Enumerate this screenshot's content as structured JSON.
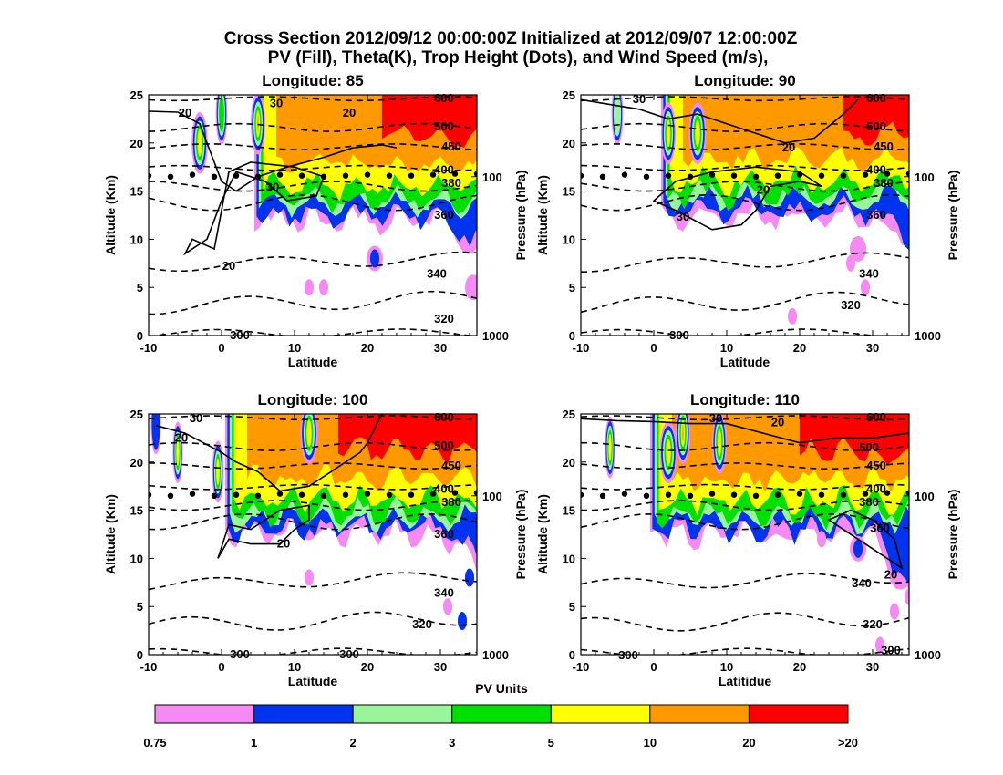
{
  "figure": {
    "title_line1": "Cross Section 2012/09/12 00:00:00Z Initialized at 2012/09/07 12:00:00Z",
    "title_line2": "PV (Fill), Theta(K), Trop Height (Dots), and Wind Speed (m/s),"
  },
  "colorbar": {
    "label": "PV Units",
    "bins": [
      {
        "lo": "0.75",
        "hi": "1",
        "color": "#f58af5"
      },
      {
        "lo": "1",
        "hi": "2",
        "color": "#0033ee"
      },
      {
        "lo": "2",
        "hi": "3",
        "color": "#99f599"
      },
      {
        "lo": "3",
        "hi": "5",
        "color": "#00e000"
      },
      {
        "lo": "5",
        "hi": "10",
        "color": "#ffff00"
      },
      {
        "lo": "10",
        "hi": "20",
        "color": "#ff9900"
      },
      {
        "lo": "20",
        "hi": ">20",
        "color": "#ff0000"
      }
    ],
    "tick_labels": [
      "0.75",
      "1",
      "2",
      "3",
      "5",
      "10",
      "20",
      ">20"
    ]
  },
  "chart_data": [
    {
      "type": "contour",
      "title": "Longitude:  85",
      "longitude": 85,
      "xlabel": "Latitude",
      "ylabel": "Altitude (Km)",
      "y2label": "Pressure (hPa)",
      "xlim": [
        -10,
        35
      ],
      "ylim": [
        0,
        25
      ],
      "xticks": [
        -10,
        0,
        10,
        20,
        30
      ],
      "yticks": [
        0,
        5,
        10,
        15,
        20,
        25
      ],
      "y2ticks": [
        {
          "label": "100",
          "alt": 16.5
        },
        {
          "label": "1000",
          "alt": 0
        }
      ],
      "trop_height_km": [
        [
          -10,
          16.6
        ],
        [
          -7,
          16.5
        ],
        [
          -4,
          16.7
        ],
        [
          -1,
          16.5
        ],
        [
          2,
          16.6
        ],
        [
          5,
          16.5
        ],
        [
          8,
          16.7
        ],
        [
          11,
          16.6
        ],
        [
          14,
          16.5
        ],
        [
          17,
          16.6
        ],
        [
          20,
          16.7
        ],
        [
          23,
          16.6
        ],
        [
          26,
          16.6
        ],
        [
          29,
          16.7
        ],
        [
          32,
          16.8
        ],
        [
          35,
          16.8
        ]
      ],
      "theta_labels": [
        {
          "label": "600",
          "lat": 30.5,
          "alt": 24.7
        },
        {
          "label": "500",
          "lat": 30.5,
          "alt": 21.8
        },
        {
          "label": "450",
          "lat": 31.5,
          "alt": 19.7
        },
        {
          "label": "400",
          "lat": 30.5,
          "alt": 17.3
        },
        {
          "label": "380",
          "lat": 31.5,
          "alt": 15.9
        },
        {
          "label": "360",
          "lat": 30.5,
          "alt": 12.6
        },
        {
          "label": "340",
          "lat": 29.5,
          "alt": 6.5
        },
        {
          "label": "320",
          "lat": 30.5,
          "alt": 1.8
        },
        {
          "label": "300",
          "lat": 2.5,
          "alt": 0.1
        }
      ],
      "wind_labels": [
        {
          "label": "30",
          "lat": 7.5,
          "alt": 24.2
        },
        {
          "label": "20",
          "lat": -5,
          "alt": 23.2
        },
        {
          "label": "20",
          "lat": 17.5,
          "alt": 23.2
        },
        {
          "label": "30",
          "lat": 7,
          "alt": 15.5
        },
        {
          "label": "20",
          "lat": 1,
          "alt": 7.3
        }
      ]
    },
    {
      "type": "contour",
      "title": "Longitude:  90",
      "longitude": 90,
      "xlabel": "Latitude",
      "ylabel": "Altitude (Km)",
      "y2label": "Pressure (hPa)",
      "xlim": [
        -10,
        35
      ],
      "ylim": [
        0,
        25
      ],
      "xticks": [
        -10,
        0,
        10,
        20,
        30
      ],
      "yticks": [
        0,
        5,
        10,
        15,
        20,
        25
      ],
      "y2ticks": [
        {
          "label": "100",
          "alt": 16.5
        },
        {
          "label": "1000",
          "alt": 0
        }
      ],
      "trop_height_km": [
        [
          -10,
          16.6
        ],
        [
          -7,
          16.5
        ],
        [
          -4,
          16.7
        ],
        [
          -1,
          16.5
        ],
        [
          2,
          16.6
        ],
        [
          5,
          16.5
        ],
        [
          8,
          16.7
        ],
        [
          11,
          16.6
        ],
        [
          14,
          16.5
        ],
        [
          17,
          16.6
        ],
        [
          20,
          16.7
        ],
        [
          23,
          16.6
        ],
        [
          26,
          16.6
        ],
        [
          29,
          16.7
        ],
        [
          32,
          16.8
        ],
        [
          35,
          16.8
        ]
      ],
      "theta_labels": [
        {
          "label": "600",
          "lat": 30.5,
          "alt": 24.7
        },
        {
          "label": "500",
          "lat": 30.5,
          "alt": 21.8
        },
        {
          "label": "450",
          "lat": 31.5,
          "alt": 19.7
        },
        {
          "label": "400",
          "lat": 30.5,
          "alt": 17.3
        },
        {
          "label": "380",
          "lat": 31.5,
          "alt": 15.9
        },
        {
          "label": "360",
          "lat": 30.5,
          "alt": 12.6
        },
        {
          "label": "340",
          "lat": 29.5,
          "alt": 6.5
        },
        {
          "label": "320",
          "lat": 27,
          "alt": 3.2
        },
        {
          "label": "300",
          "lat": 3.5,
          "alt": 0.1
        }
      ],
      "wind_labels": [
        {
          "label": "30",
          "lat": -2,
          "alt": 24.6
        },
        {
          "label": "20",
          "lat": 18.5,
          "alt": 19.6
        },
        {
          "label": "20",
          "lat": 15,
          "alt": 15.2
        },
        {
          "label": "30",
          "lat": 4,
          "alt": 12.4
        }
      ]
    },
    {
      "type": "contour",
      "title": "Longitude:  100",
      "longitude": 100,
      "xlabel": "Latitude",
      "ylabel": "Altitude (Km)",
      "y2label": "Pressure (hPa)",
      "xlim": [
        -10,
        35
      ],
      "ylim": [
        0,
        25
      ],
      "xticks": [
        -10,
        0,
        10,
        20,
        30
      ],
      "yticks": [
        0,
        5,
        10,
        15,
        20,
        25
      ],
      "y2ticks": [
        {
          "label": "100",
          "alt": 16.5
        },
        {
          "label": "1000",
          "alt": 0
        }
      ],
      "trop_height_km": [
        [
          -10,
          16.6
        ],
        [
          -7,
          16.5
        ],
        [
          -4,
          16.7
        ],
        [
          -1,
          16.5
        ],
        [
          2,
          16.6
        ],
        [
          5,
          16.5
        ],
        [
          8,
          16.7
        ],
        [
          11,
          16.6
        ],
        [
          14,
          16.5
        ],
        [
          17,
          16.6
        ],
        [
          20,
          16.7
        ],
        [
          23,
          16.6
        ],
        [
          26,
          16.6
        ],
        [
          29,
          16.7
        ],
        [
          32,
          16.8
        ],
        [
          35,
          16.8
        ]
      ],
      "theta_labels": [
        {
          "label": "600",
          "lat": 30.5,
          "alt": 24.7
        },
        {
          "label": "500",
          "lat": 30.5,
          "alt": 21.8
        },
        {
          "label": "450",
          "lat": 31.5,
          "alt": 19.7
        },
        {
          "label": "400",
          "lat": 30.5,
          "alt": 17.3
        },
        {
          "label": "380",
          "lat": 31.5,
          "alt": 15.9
        },
        {
          "label": "360",
          "lat": 30.5,
          "alt": 12.6
        },
        {
          "label": "340",
          "lat": 30.5,
          "alt": 6.5
        },
        {
          "label": "320",
          "lat": 27.5,
          "alt": 3.2
        },
        {
          "label": "300",
          "lat": 2.5,
          "alt": 0.1
        },
        {
          "label": "300",
          "lat": 17.5,
          "alt": 0.1
        }
      ],
      "wind_labels": [
        {
          "label": "30",
          "lat": -3.5,
          "alt": 24.6
        },
        {
          "label": "20",
          "lat": -5.5,
          "alt": 22.6
        },
        {
          "label": "20",
          "lat": 8.5,
          "alt": 11.6
        }
      ]
    },
    {
      "type": "contour",
      "title": "Longitude:  110",
      "longitude": 110,
      "xlabel": "Latitidue",
      "ylabel": "Altitude (Km)",
      "y2label": "Pressure (hPa)",
      "xlim": [
        -10,
        35
      ],
      "ylim": [
        0,
        25
      ],
      "xticks": [
        -10,
        0,
        10,
        20,
        30
      ],
      "yticks": [
        0,
        5,
        10,
        15,
        20,
        25
      ],
      "y2ticks": [
        {
          "label": "100",
          "alt": 16.5
        },
        {
          "label": "1000",
          "alt": 0
        }
      ],
      "trop_height_km": [
        [
          -10,
          16.6
        ],
        [
          -7,
          16.5
        ],
        [
          -4,
          16.7
        ],
        [
          -1,
          16.5
        ],
        [
          2,
          16.6
        ],
        [
          5,
          16.5
        ],
        [
          8,
          16.7
        ],
        [
          11,
          16.6
        ],
        [
          14,
          16.5
        ],
        [
          17,
          16.6
        ],
        [
          20,
          16.7
        ],
        [
          23,
          16.6
        ],
        [
          26,
          16.6
        ],
        [
          29,
          16.7
        ],
        [
          32,
          16.8
        ],
        [
          35,
          16.8
        ]
      ],
      "theta_labels": [
        {
          "label": "600",
          "lat": 30.5,
          "alt": 24.7
        },
        {
          "label": "500",
          "lat": 29.5,
          "alt": 21.6
        },
        {
          "label": "450",
          "lat": 30.5,
          "alt": 19.7
        },
        {
          "label": "400",
          "lat": 30.5,
          "alt": 17.3
        },
        {
          "label": "380",
          "lat": 29.5,
          "alt": 15.9
        },
        {
          "label": "360",
          "lat": 31,
          "alt": 13.2
        },
        {
          "label": "340",
          "lat": 28.5,
          "alt": 7.5
        },
        {
          "label": "320",
          "lat": 30,
          "alt": 3.2
        },
        {
          "label": "300",
          "lat": -3.5,
          "alt": 0
        },
        {
          "label": "300",
          "lat": 32.5,
          "alt": 0.5
        }
      ],
      "wind_labels": [
        {
          "label": "30",
          "lat": 8.5,
          "alt": 24.6
        },
        {
          "label": "20",
          "lat": 17,
          "alt": 24.2
        },
        {
          "label": "20",
          "lat": 32.5,
          "alt": 8.4
        }
      ]
    }
  ]
}
